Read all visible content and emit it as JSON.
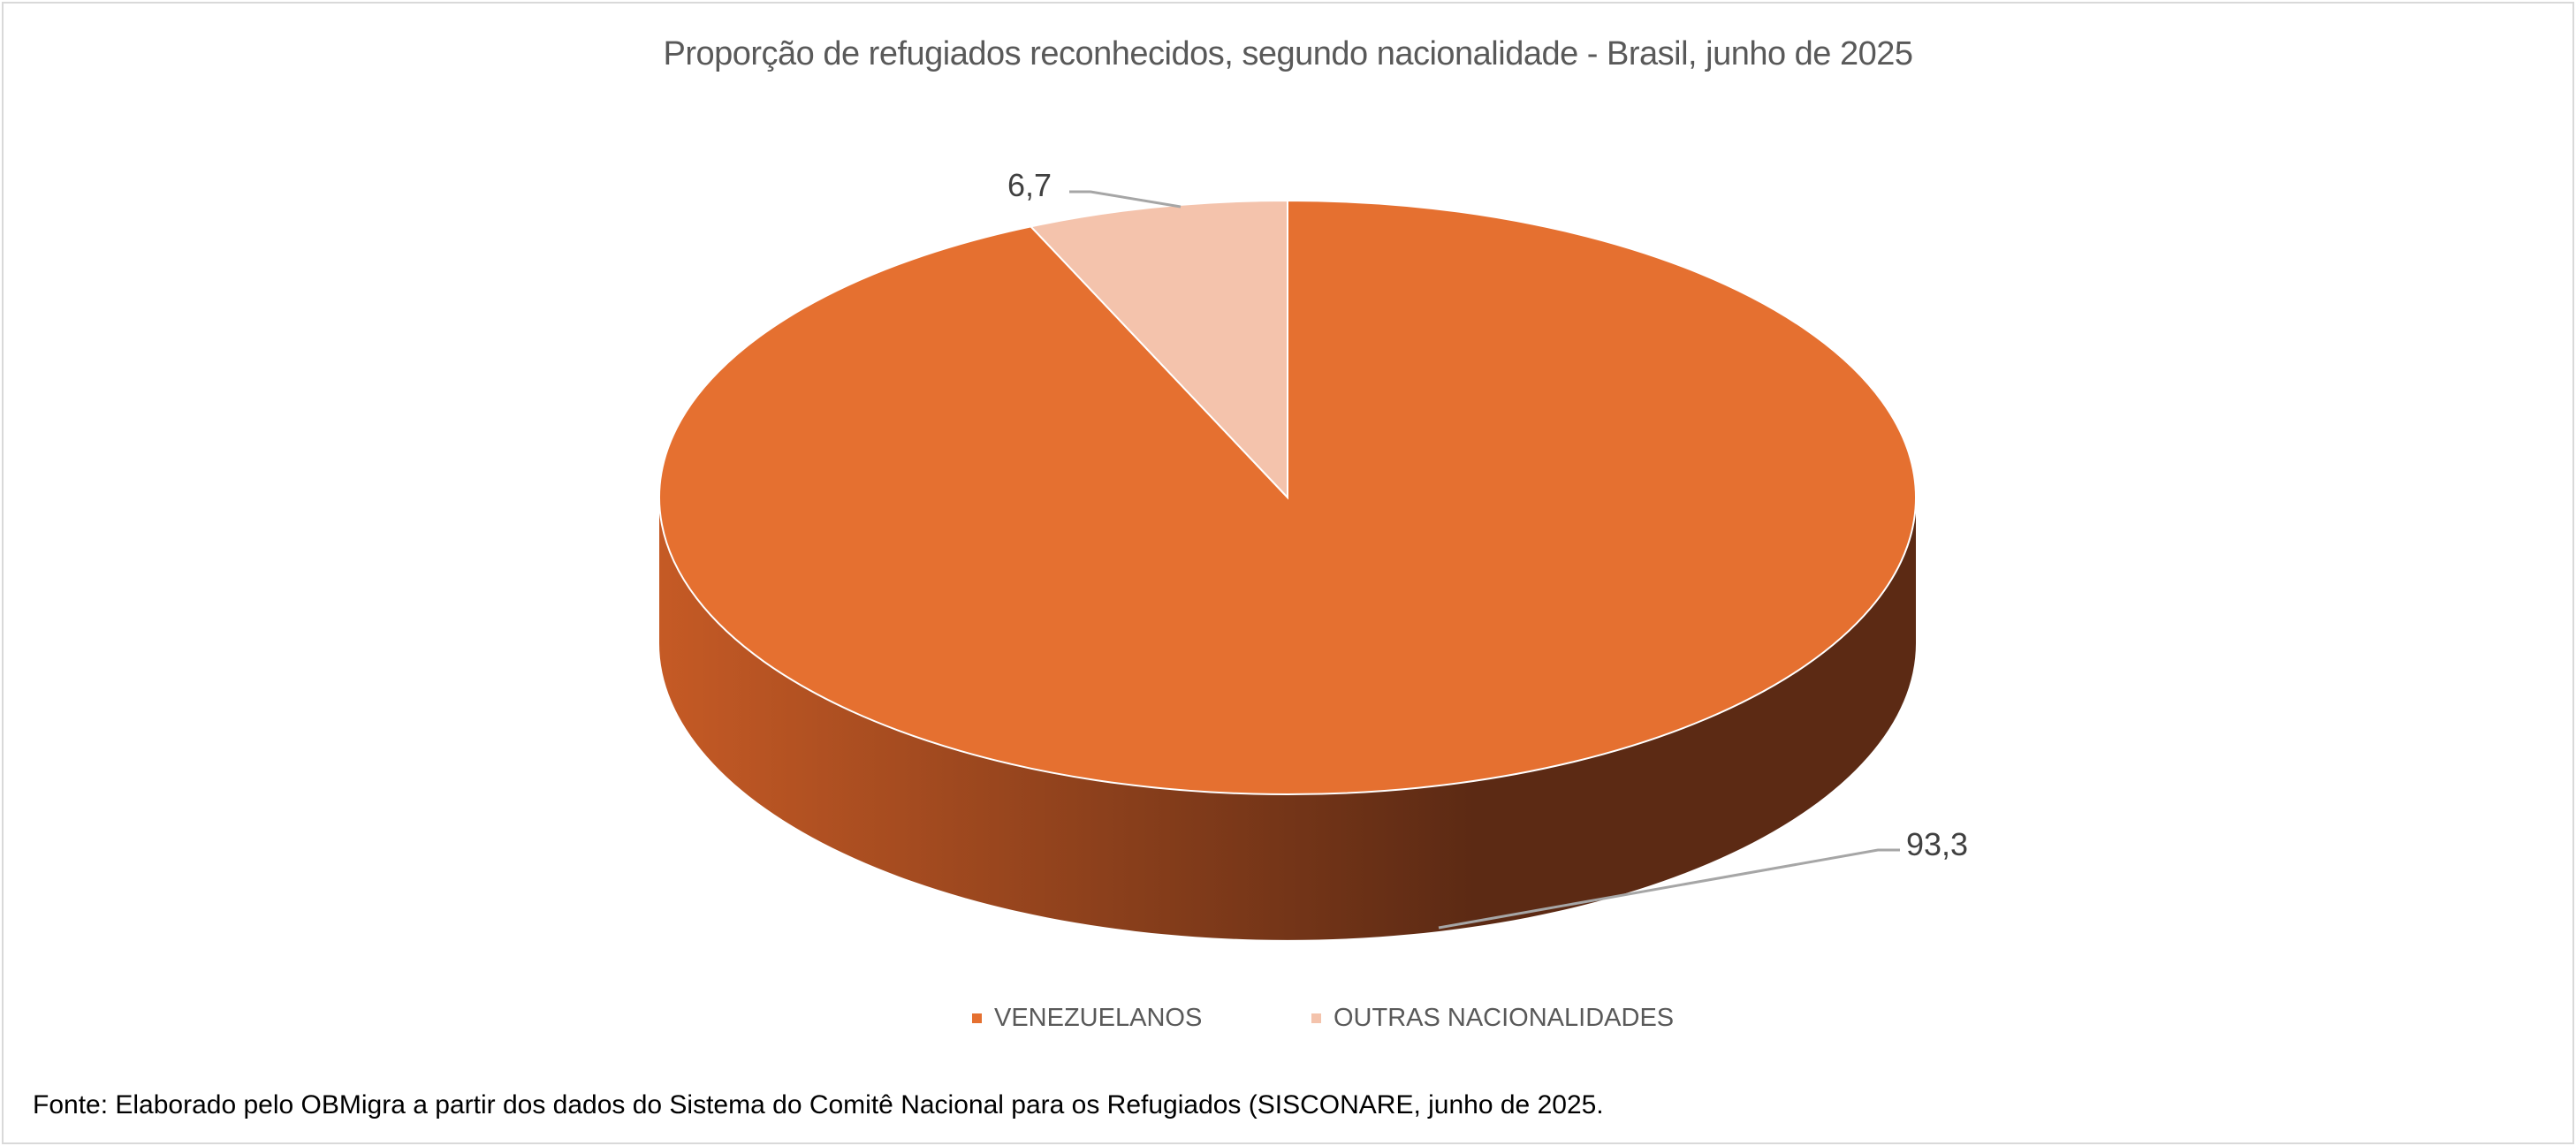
{
  "chart_data": {
    "type": "pie",
    "style": "3d",
    "title": "Proporção de refugiados reconhecidos, segundo nacionalidade - Brasil, junho de 2025",
    "categories": [
      "VENEZUELANOS",
      "OUTRAS NACIONALIDADES"
    ],
    "values": [
      93.3,
      6.7
    ],
    "data_labels": [
      "93,3",
      "6,7"
    ],
    "colors": [
      "#E57030",
      "#F4C3AC"
    ],
    "side_colors": [
      "#C55A25",
      "#5C2A14"
    ],
    "legend_position": "bottom"
  },
  "footer": "Fonte: Elaborado pelo OBMigra a partir dos dados  do Sistema do Comitê Nacional para os Refugiados (SISCONARE, junho de 2025."
}
